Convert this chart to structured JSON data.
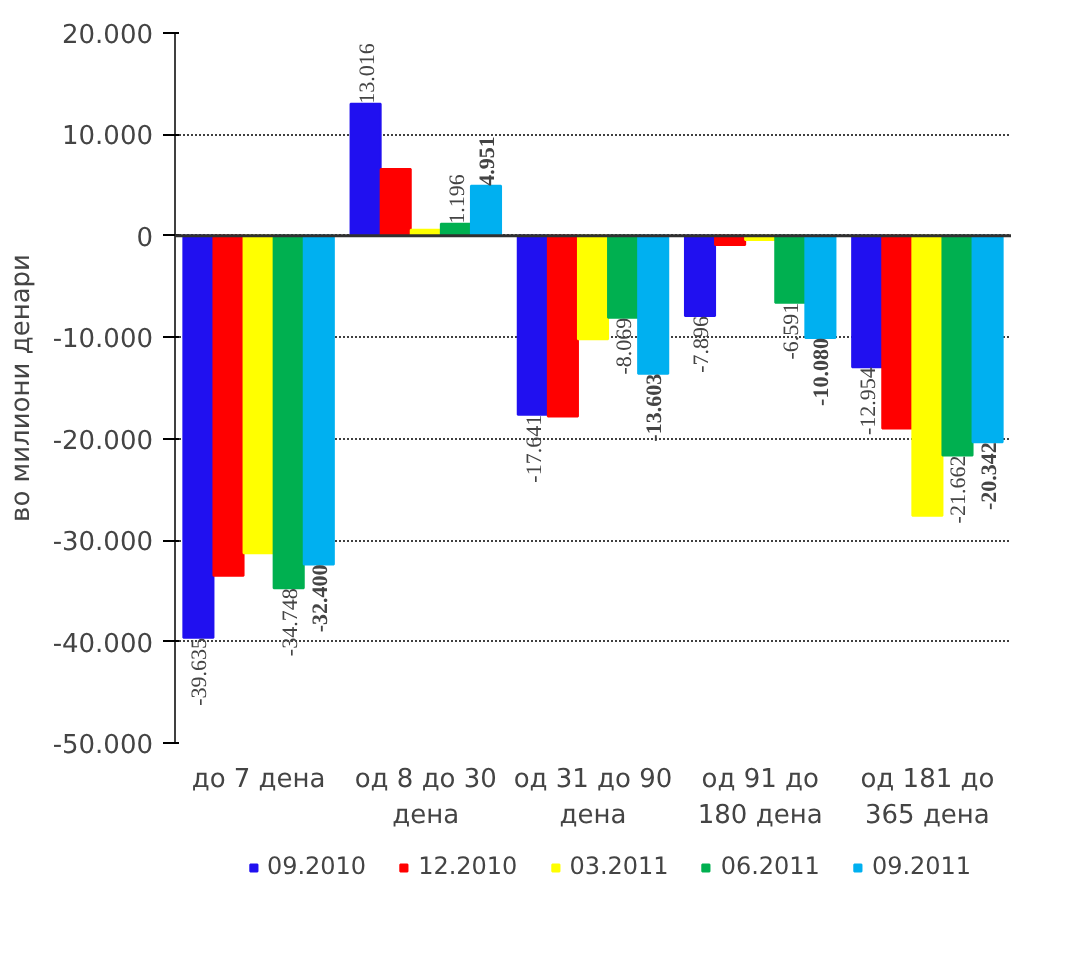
{
  "chart_data": {
    "type": "bar",
    "ylabel": "во милиони денари",
    "categories": [
      "до 7 дена",
      "од 8 до 30 дена",
      "од 31 до 90 дена",
      "од 91 до 180 дена",
      "од 181 до 365 дена"
    ],
    "series": [
      {
        "name": "09.2010",
        "color": "#2010f0",
        "values": [
          -39635,
          13016,
          -17641,
          -7896,
          -12954
        ],
        "value_labels": [
          "-39.635",
          "13.016",
          "-17.641",
          "-7.896",
          "-12.954"
        ]
      },
      {
        "name": "12.2010",
        "color": "#ff0000",
        "values": [
          -33500,
          6600,
          -17800,
          -900,
          -19000
        ],
        "value_labels": [
          null,
          null,
          null,
          null,
          null
        ]
      },
      {
        "name": "03.2011",
        "color": "#ffff00",
        "values": [
          -31300,
          600,
          -10200,
          -400,
          -27600
        ],
        "value_labels": [
          null,
          null,
          null,
          null,
          null
        ]
      },
      {
        "name": "06.2011",
        "color": "#00b050",
        "values": [
          -34748,
          1196,
          -8069,
          -6591,
          -21662
        ],
        "value_labels": [
          "-34.748",
          "1.196",
          "-8.069",
          "-6.591",
          "-21.662"
        ]
      },
      {
        "name": "09.2011",
        "color": "#00b0f0",
        "values": [
          -32400,
          4951,
          -13603,
          -10080,
          -20342
        ],
        "value_labels": [
          "-32.400",
          "4.951",
          "-13.603",
          "-10.080",
          "-20.342"
        ]
      }
    ],
    "ylim": [
      -50000,
      20000
    ],
    "yticks": [
      {
        "value": -50000,
        "label": "-50.000"
      },
      {
        "value": -40000,
        "label": "-40.000"
      },
      {
        "value": -30000,
        "label": "-30.000"
      },
      {
        "value": -20000,
        "label": "-20.000"
      },
      {
        "value": -10000,
        "label": "-10.000"
      },
      0,
      {
        "value": 10000,
        "label": "10.000"
      },
      {
        "value": 20000,
        "label": "20.000"
      }
    ],
    "grid": "y",
    "legend": "bottom"
  }
}
